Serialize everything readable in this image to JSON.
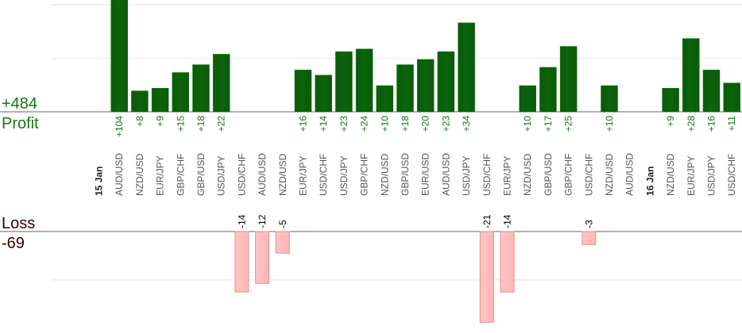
{
  "summary": {
    "profit_total": "+484",
    "profit_label": "Profit",
    "loss_label": "Loss",
    "loss_total": "-69"
  },
  "colors": {
    "profit_bar": "#0a640a",
    "profit_bar_edge": "#0e7a0e",
    "profit_text": "#117711",
    "loss_bar": "#ffb6b6",
    "loss_bar_edge": "#e88e8e",
    "axis": "#666666",
    "grid": "#e6e6e6",
    "tick_text": "#555555",
    "date_text": "#222222"
  },
  "chart_data": {
    "type": "bar",
    "categories": [
      {
        "label": "15 Jan",
        "kind": "date"
      },
      {
        "label": "AUD/USD",
        "value": 104,
        "display": "+104"
      },
      {
        "label": "NZD/USD",
        "value": 8,
        "display": "+8"
      },
      {
        "label": "EUR/JPY",
        "value": 9,
        "display": "+9"
      },
      {
        "label": "GBP/CHF",
        "value": 15,
        "display": "+15"
      },
      {
        "label": "GBP/USD",
        "value": 18,
        "display": "+18"
      },
      {
        "label": "USD/JPY",
        "value": 22,
        "display": "+22"
      },
      {
        "label": "USD/CHF",
        "value": -14,
        "display": "-14"
      },
      {
        "label": "AUD/USD",
        "value": -12,
        "display": "-12"
      },
      {
        "label": "NZD/USD",
        "value": -5,
        "display": "-5"
      },
      {
        "label": "EUR/JPY",
        "value": 16,
        "display": "+16"
      },
      {
        "label": "USD/CHF",
        "value": 14,
        "display": "+14"
      },
      {
        "label": "USD/JPY",
        "value": 23,
        "display": "+23"
      },
      {
        "label": "GBP/CHF",
        "value": 24,
        "display": "+24"
      },
      {
        "label": "NZD/USD",
        "value": 10,
        "display": "+10"
      },
      {
        "label": "GBP/USD",
        "value": 18,
        "display": "+18"
      },
      {
        "label": "EUR/USD",
        "value": 20,
        "display": "+20"
      },
      {
        "label": "AUD/USD",
        "value": 23,
        "display": "+23"
      },
      {
        "label": "USD/JPY",
        "value": 34,
        "display": "+34"
      },
      {
        "label": "USD/CHF",
        "value": -21,
        "display": "-21"
      },
      {
        "label": "EUR/JPY",
        "value": -14,
        "display": "-14"
      },
      {
        "label": "NZD/USD",
        "value": 10,
        "display": "+10"
      },
      {
        "label": "GBP/USD",
        "value": 17,
        "display": "+17"
      },
      {
        "label": "GBP/CHF",
        "value": 25,
        "display": "+25"
      },
      {
        "label": "USD/CHF",
        "value": -3,
        "display": "-3"
      },
      {
        "label": "NZD/USD",
        "value": 10,
        "display": "+10"
      },
      {
        "label": "AUD/USD"
      },
      {
        "label": "16 Jan",
        "kind": "date"
      },
      {
        "label": "NZD/USD",
        "value": 9,
        "display": "+9"
      },
      {
        "label": "EUR/JPY",
        "value": 28,
        "display": "+28"
      },
      {
        "label": "USD/JPY",
        "value": 16,
        "display": "+16"
      },
      {
        "label": "USD/CHF",
        "value": 11,
        "display": "+11"
      }
    ],
    "profit_axis_max": 21,
    "loss_axis_max": 20,
    "grid": true,
    "legend": "none"
  }
}
